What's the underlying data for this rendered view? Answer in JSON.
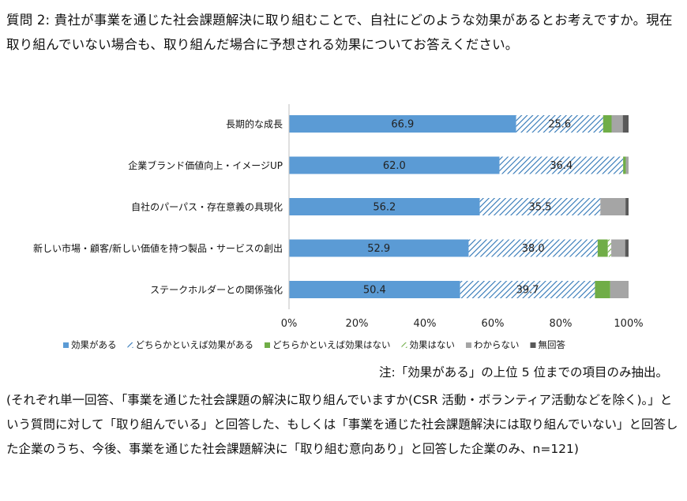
{
  "question_text": "質問 2: 貴社が事業を通じた社会課題解決に取り組むことで、自社にどのような効果があるとお考えですか。現在取り組んでいない場合も、取り組んだ場合に予想される効果についてお答えください。",
  "note": "注:「効果がある」の上位 5 位までの項目のみ抽出。",
  "footnote": "(それぞれ単一回答、「事業を通じた社会課題の解決に取り組んでいますか(CSR 活動・ボランティア活動などを除く)。」という質問に対して「取り組んでいる」と回答した、もしくは「事業を通じた社会課題解決には取り組んでいない」と回答した企業のうち、今後、事業を通じた社会課題解決に「取り組む意向あり」と回答した企業のみ、n=121)",
  "chart_data": {
    "type": "bar",
    "orientation": "horizontal",
    "stacked": true,
    "categories": [
      "長期的な成長",
      "企業ブランド価値向上・イメージUP",
      "自社のパーパス・存在意義の具現化",
      "新しい市場・顧客/新しい価値を持つ製品・サービスの創出",
      "ステークホルダーとの関係強化"
    ],
    "series": [
      {
        "name": "効果がある",
        "color": "#5b9bd5",
        "pattern": "solid",
        "values": [
          66.9,
          62.0,
          56.2,
          52.9,
          50.4
        ]
      },
      {
        "name": "どちらかといえば効果がある",
        "color": "#2e75b6",
        "pattern": "diagonal-hatch",
        "values": [
          25.6,
          36.4,
          35.5,
          38.0,
          39.7
        ]
      },
      {
        "name": "どちらかといえば効果はない",
        "color": "#70ad47",
        "pattern": "solid",
        "values": [
          2.5,
          0.8,
          0.0,
          3.0,
          4.5
        ]
      },
      {
        "name": "効果はない",
        "color": "#70ad47",
        "pattern": "diagonal-hatch",
        "values": [
          0.0,
          0.0,
          0.0,
          1.0,
          0.0
        ]
      },
      {
        "name": "わからない",
        "color": "#a5a5a5",
        "pattern": "solid",
        "values": [
          3.3,
          0.8,
          7.4,
          4.1,
          5.4
        ]
      },
      {
        "name": "無回答",
        "color": "#595959",
        "pattern": "solid",
        "values": [
          1.7,
          0.0,
          0.9,
          1.0,
          0.0
        ]
      }
    ],
    "data_labels": [
      [
        "66.9",
        "25.6"
      ],
      [
        "62.0",
        "36.4"
      ],
      [
        "56.2",
        "35.5"
      ],
      [
        "52.9",
        "38.0"
      ],
      [
        "50.4",
        "39.7"
      ]
    ],
    "xlim": [
      0,
      100
    ],
    "x_ticks": [
      "0%",
      "20%",
      "40%",
      "60%",
      "80%",
      "100%"
    ],
    "grid": false,
    "legend_position": "bottom"
  }
}
